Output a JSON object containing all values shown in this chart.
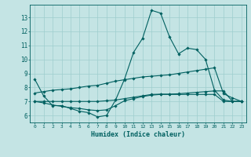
{
  "xlabel": "Humidex (Indice chaleur)",
  "bg_color": "#c4e4e4",
  "grid_color": "#9ecece",
  "line_color": "#006060",
  "xlim": [
    -0.5,
    23.5
  ],
  "ylim": [
    5.5,
    13.9
  ],
  "xticks": [
    0,
    1,
    2,
    3,
    4,
    5,
    6,
    7,
    8,
    9,
    10,
    11,
    12,
    13,
    14,
    15,
    16,
    17,
    18,
    19,
    20,
    21,
    22,
    23
  ],
  "yticks": [
    6,
    7,
    8,
    9,
    10,
    11,
    12,
    13
  ],
  "line1_y": [
    8.6,
    7.4,
    6.7,
    6.7,
    6.5,
    6.3,
    6.2,
    5.9,
    6.0,
    7.1,
    8.6,
    10.5,
    11.5,
    13.5,
    13.3,
    11.6,
    10.4,
    10.8,
    10.7,
    10.0,
    7.8,
    7.1,
    7.0,
    7.0
  ],
  "line2_y": [
    7.6,
    7.7,
    7.8,
    7.85,
    7.9,
    8.0,
    8.1,
    8.15,
    8.3,
    8.45,
    8.55,
    8.65,
    8.75,
    8.8,
    8.85,
    8.9,
    9.0,
    9.1,
    9.2,
    9.3,
    9.4,
    7.55,
    7.25,
    7.0
  ],
  "line3_y": [
    7.0,
    7.0,
    7.0,
    7.0,
    7.0,
    7.0,
    7.0,
    7.0,
    7.05,
    7.1,
    7.2,
    7.3,
    7.4,
    7.5,
    7.52,
    7.52,
    7.55,
    7.6,
    7.65,
    7.7,
    7.75,
    7.75,
    7.0,
    7.0
  ],
  "line4_y": [
    7.0,
    6.9,
    6.75,
    6.65,
    6.55,
    6.5,
    6.4,
    6.35,
    6.4,
    6.7,
    7.05,
    7.2,
    7.35,
    7.45,
    7.5,
    7.5,
    7.5,
    7.5,
    7.5,
    7.5,
    7.5,
    7.0,
    7.0,
    7.0
  ]
}
